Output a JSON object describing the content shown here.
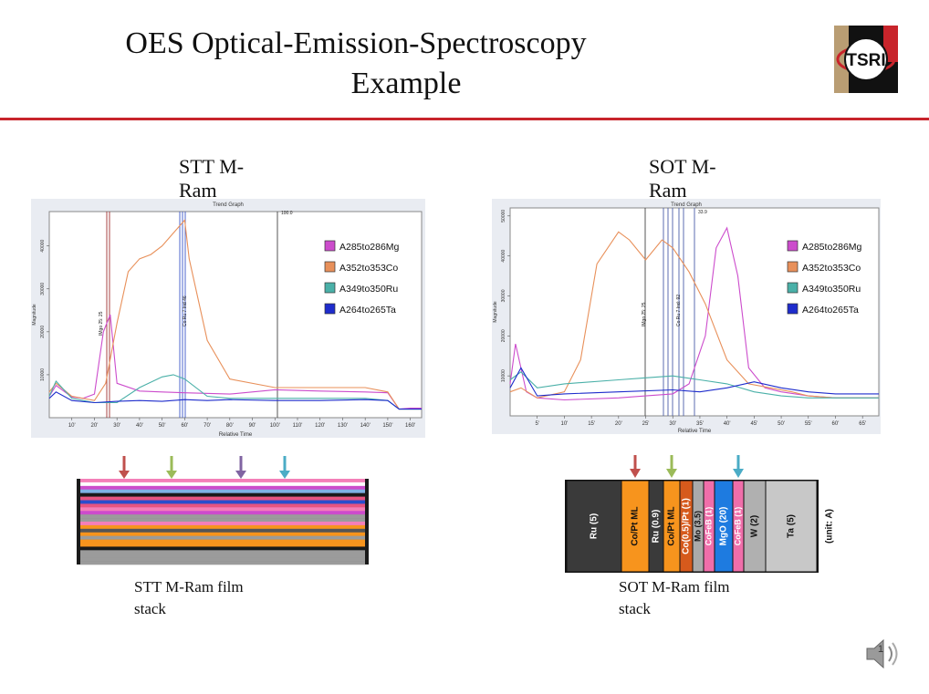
{
  "slide": {
    "title_line1": "OES Optical-Emission-Spectroscopy",
    "title_line2": "Example",
    "logo_text": "TSRI",
    "page_number": "1"
  },
  "left": {
    "caption_line1": "STT M-",
    "caption_line2": "Ram",
    "stack_caption_line1": "STT M-Ram film",
    "stack_caption_line2": "stack"
  },
  "right": {
    "caption_line1": "SOT M-",
    "caption_line2": "Ram",
    "stack_caption_line1": "SOT M-Ram film",
    "stack_caption_line2": "stack"
  },
  "chart_data": [
    {
      "type": "line",
      "title": "Trend Graph",
      "xlabel": "Relative Time",
      "ylabel": "Magnitude",
      "xlim": [
        0,
        165
      ],
      "ylim": [
        0,
        48000
      ],
      "x_ticks": [
        "10'",
        "20'",
        "30'",
        "40'",
        "50'",
        "60'",
        "70'",
        "80'",
        "90'",
        "100'",
        "110'",
        "120'",
        "130'",
        "140'",
        "150'",
        "160'"
      ],
      "y_ticks": [
        "10000",
        "20000",
        "30000",
        "40000"
      ],
      "marker_text": [
        "IMgo 25: 25",
        "Co Ru 7 Ind 46",
        "100.0"
      ],
      "legend": [
        "A285to286Mg",
        "A352to353Co",
        "A349to350Ru",
        "A264to265Ta"
      ],
      "colors": [
        "#cc4ccc",
        "#e8905a",
        "#4ab0a8",
        "#1e2ccc"
      ],
      "series": [
        {
          "name": "A285to286Mg",
          "x": [
            0,
            3,
            10,
            15,
            20,
            24,
            27,
            30,
            40,
            50,
            60,
            80,
            100,
            120,
            140,
            150,
            155,
            160,
            165
          ],
          "y": [
            5000,
            7500,
            4800,
            4500,
            5500,
            20000,
            24000,
            8000,
            6200,
            6000,
            5800,
            5500,
            6500,
            6200,
            6000,
            5800,
            2000,
            2200,
            2200
          ]
        },
        {
          "name": "A352to353Co",
          "x": [
            0,
            3,
            10,
            20,
            25,
            30,
            35,
            40,
            45,
            50,
            55,
            60,
            62,
            70,
            80,
            100,
            140,
            150,
            155,
            165
          ],
          "y": [
            6000,
            8000,
            5000,
            4000,
            8000,
            22000,
            34000,
            37000,
            38000,
            40000,
            43000,
            46000,
            37000,
            18000,
            9000,
            7000,
            7000,
            6000,
            2000,
            2000
          ]
        },
        {
          "name": "A349to350Ru",
          "x": [
            0,
            3,
            10,
            20,
            30,
            40,
            50,
            55,
            60,
            70,
            80,
            100,
            140,
            150,
            155,
            165
          ],
          "y": [
            5000,
            8500,
            4500,
            3500,
            3500,
            7000,
            9500,
            10000,
            9000,
            5000,
            4500,
            4500,
            4500,
            4000,
            2000,
            2000
          ]
        },
        {
          "name": "A264to265Ta",
          "x": [
            0,
            3,
            10,
            20,
            30,
            40,
            50,
            60,
            70,
            80,
            100,
            120,
            140,
            150,
            155,
            165
          ],
          "y": [
            4500,
            6000,
            4000,
            3500,
            3800,
            4000,
            3800,
            4200,
            4000,
            4200,
            4000,
            4000,
            4200,
            4000,
            2000,
            2000
          ]
        }
      ]
    },
    {
      "type": "line",
      "title": "Trend Graph",
      "xlabel": "Relative Time",
      "ylabel": "Magnitude",
      "xlim": [
        0,
        68
      ],
      "ylim": [
        0,
        52000
      ],
      "x_ticks": [
        "5'",
        "10'",
        "15'",
        "20'",
        "25'",
        "30'",
        "35'",
        "40'",
        "45'",
        "50'",
        "55'",
        "60'",
        "65'"
      ],
      "y_ticks": [
        "10000",
        "20000",
        "30000",
        "40000",
        "50000"
      ],
      "marker_text": [
        "IMgo 25: 25",
        "Co Ru 7 Ind: 92",
        "33.9"
      ],
      "legend": [
        "A285to286Mg",
        "A352to353Co",
        "A349to350Ru",
        "A264to265Ta"
      ],
      "colors": [
        "#cc4ccc",
        "#e8905a",
        "#4ab0a8",
        "#1e2ccc"
      ],
      "series": [
        {
          "name": "A285to286Mg",
          "x": [
            0,
            1,
            3,
            5,
            10,
            20,
            25,
            30,
            33,
            36,
            38,
            40,
            42,
            44,
            47,
            50,
            55,
            60,
            65,
            68
          ],
          "y": [
            8000,
            18000,
            6000,
            4500,
            4000,
            4500,
            5000,
            5500,
            8000,
            20000,
            42000,
            47000,
            35000,
            12000,
            7000,
            6000,
            5000,
            4500,
            4500,
            4500
          ]
        },
        {
          "name": "A352to353Co",
          "x": [
            0,
            2,
            5,
            10,
            13,
            16,
            20,
            22,
            25,
            28,
            30,
            33,
            36,
            40,
            44,
            48,
            52,
            55,
            60,
            68
          ],
          "y": [
            6000,
            7000,
            4500,
            6000,
            14000,
            38000,
            46000,
            44000,
            39000,
            44000,
            42000,
            36000,
            28000,
            14000,
            8000,
            7000,
            6000,
            5000,
            4500,
            4500
          ]
        },
        {
          "name": "A349to350Ru",
          "x": [
            0,
            2,
            5,
            10,
            20,
            25,
            30,
            35,
            40,
            45,
            50,
            55,
            60,
            68
          ],
          "y": [
            9000,
            11000,
            7000,
            8000,
            9000,
            9500,
            10000,
            9000,
            8000,
            6000,
            5000,
            4500,
            4500,
            4500
          ]
        },
        {
          "name": "A264to265Ta",
          "x": [
            0,
            2,
            5,
            10,
            20,
            30,
            35,
            40,
            45,
            50,
            55,
            60,
            68
          ],
          "y": [
            7000,
            12000,
            5000,
            5500,
            6000,
            6500,
            6000,
            7000,
            8500,
            7000,
            6000,
            5500,
            5500
          ]
        }
      ]
    }
  ],
  "stt_stack": {
    "arrows": [
      "#c0504d",
      "#9bbb59",
      "#8064a2",
      "#4bacc6"
    ],
    "layers": [
      "#f47fb8",
      "#ffffff",
      "#cc4ccc",
      "#7fb2e5",
      "#1a1a1a",
      "#e75480",
      "#2a4dcc",
      "#e75480",
      "#f47fb8",
      "#cc4ccc",
      "#9b9b9b",
      "#9b9b9b",
      "#f47fb8",
      "#f7941d",
      "#555555",
      "#f7941d",
      "#9b9b9b",
      "#f7941d",
      "#f7941d",
      "#1a1a1a",
      "#9b9b9b",
      "#9b9b9b",
      "#9b9b9b",
      "#9b9b9b"
    ]
  },
  "sot_stack": {
    "unit_label": "(unit: A)",
    "arrows": [
      {
        "color": "#c0504d",
        "target": 1
      },
      {
        "color": "#9bbb59",
        "target": 3
      },
      {
        "color": "#4bacc6",
        "target": 8
      }
    ],
    "layers": [
      {
        "label": "Ru (5)",
        "color": "#3a3a3a",
        "text_color": "#ffffff"
      },
      {
        "label": "Co/Pt ML",
        "color": "#f7941d",
        "text_color": "#111111"
      },
      {
        "label": "Ru (0.9)",
        "color": "#3a3a3a",
        "text_color": "#ffffff"
      },
      {
        "label": "Co/Pt ML",
        "color": "#f7941d",
        "text_color": "#111111"
      },
      {
        "label": "Co(0.5)/Pt (1)",
        "color": "#d65a1c",
        "text_color": "#ffffff"
      },
      {
        "label": "Mo (3.5)",
        "color": "#aaaaaa",
        "text_color": "#111111"
      },
      {
        "label": "CoFeB (1)",
        "color": "#f06eaa",
        "text_color": "#ffffff"
      },
      {
        "label": "MgO (20)",
        "color": "#1e7be0",
        "text_color": "#ffffff"
      },
      {
        "label": "CoFeB (1)",
        "color": "#f06eaa",
        "text_color": "#ffffff"
      },
      {
        "label": "W (2)",
        "color": "#b0b0b0",
        "text_color": "#111111"
      },
      {
        "label": "Ta (5)",
        "color": "#c8c8c8",
        "text_color": "#111111"
      }
    ]
  }
}
